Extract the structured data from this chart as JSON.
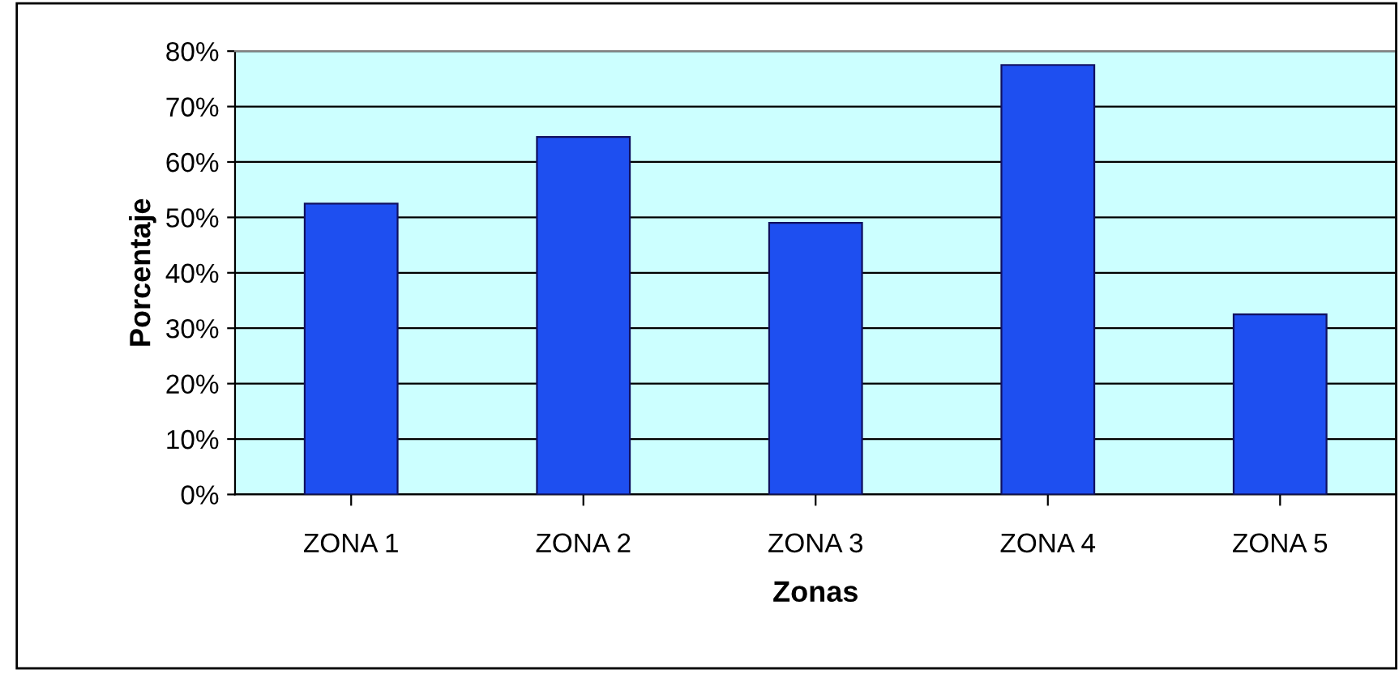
{
  "chart_data": {
    "type": "bar",
    "xlabel": "Zonas",
    "ylabel": "Porcentaje",
    "categories": [
      "ZONA 1",
      "ZONA 2",
      "ZONA 3",
      "ZONA 4",
      "ZONA 5"
    ],
    "values": [
      52.5,
      64.5,
      49,
      77.5,
      32.5
    ],
    "color": "#1e4ff0",
    "ylim": [
      0,
      80
    ],
    "yticks": [
      {
        "value": 0,
        "label": "0%"
      },
      {
        "value": 10,
        "label": "10%"
      },
      {
        "value": 20,
        "label": "20%"
      },
      {
        "value": 30,
        "label": "30%"
      },
      {
        "value": 40,
        "label": "40%"
      },
      {
        "value": 50,
        "label": "50%"
      },
      {
        "value": 60,
        "label": "60%"
      },
      {
        "value": 70,
        "label": "70%"
      },
      {
        "value": 80,
        "label": "80%"
      }
    ],
    "grid": "y",
    "legend": false
  }
}
